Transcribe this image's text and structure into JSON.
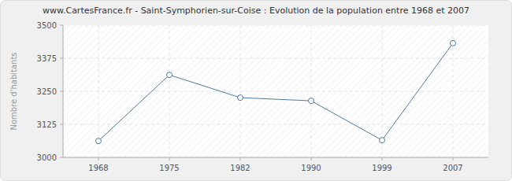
{
  "chart_data": {
    "type": "line",
    "title": "www.CartesFrance.fr - Saint-Symphorien-sur-Coise : Evolution de la population entre 1968 et 2007",
    "y_label": "Nombre d'habitants",
    "categories": [
      "1968",
      "1975",
      "1982",
      "1990",
      "1999",
      "2007"
    ],
    "values": [
      3062,
      3312,
      3226,
      3214,
      3065,
      3432
    ],
    "color": "#4f7aa3",
    "marker": "circle",
    "ylim": [
      3000,
      3500
    ],
    "yticks": [
      3000,
      3125,
      3250,
      3375,
      3500
    ],
    "grid": true
  }
}
